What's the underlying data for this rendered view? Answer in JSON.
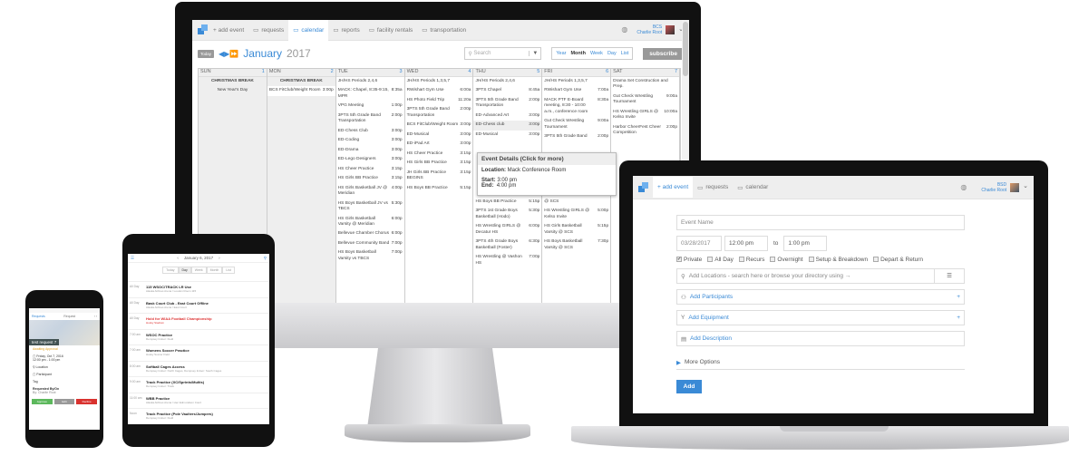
{
  "colors": {
    "accent": "#3a8ad6",
    "approve": "#5cb85c",
    "edit": "#999999",
    "decline": "#d9322f",
    "hold": "#dd3333"
  },
  "desktop": {
    "nav": {
      "items": [
        {
          "icon": "add-icon",
          "label": "+ add event"
        },
        {
          "icon": "inbox-icon",
          "label": "requests"
        },
        {
          "icon": "calendar-icon",
          "label": "calendar",
          "active": true
        },
        {
          "icon": "reports-icon",
          "label": "reports"
        },
        {
          "icon": "building-icon",
          "label": "facility rentals"
        },
        {
          "icon": "plane-icon",
          "label": "transportation"
        }
      ],
      "org": "BCS",
      "user": "Charlie Root"
    },
    "toolbar": {
      "today": "Today",
      "month": "January",
      "year": "2017",
      "search_placeholder": "Search",
      "views": [
        "Year",
        "Month",
        "Week",
        "Day",
        "List"
      ],
      "current_view": "Month",
      "subscribe": "subscribe"
    },
    "days": [
      {
        "name": "SUN",
        "num": "1",
        "allday": [
          "CHRISTMAS BREAK",
          "New Year's Day"
        ],
        "events": []
      },
      {
        "name": "MON",
        "num": "2",
        "allday": [
          "CHRISTMAS BREAK"
        ],
        "events": [
          [
            "BCS FitClub/Weight Room",
            "3:00p"
          ]
        ]
      },
      {
        "name": "TUE",
        "num": "3",
        "allday": [],
        "events": [
          [
            "JH/HS Periods 2,4,6",
            ""
          ],
          [
            "MACK: Chapel, 8:35-9:15, MPR",
            "8:35a"
          ],
          [
            "VPG Meeting",
            "1:00p"
          ],
          [
            "3PTS 5th Grade Band Transportation",
            "2:00p"
          ],
          [
            "ED-Chess Club",
            "3:00p"
          ],
          [
            "ED-Coding",
            "3:00p"
          ],
          [
            "ED-Drama",
            "3:00p"
          ],
          [
            "ED-Lego Designers",
            "3:00p"
          ],
          [
            "HS Cheer Practice",
            "3:15p"
          ],
          [
            "HS Girls BB Practice",
            "3:15p"
          ],
          [
            "HS Girls Basketball JV @ Meridian",
            "4:00p"
          ],
          [
            "HS Boys Basketball JV vs TBCS",
            "5:30p"
          ],
          [
            "HS Girls Basketball Varsity @ Meridian",
            "6:00p"
          ],
          [
            "Bellevue Chamber Chorus",
            "6:00p"
          ],
          [
            "Bellevue Community Band",
            "7:00p"
          ],
          [
            "HS Boys Basketball Varsity vs TBCS",
            "7:00p"
          ]
        ]
      },
      {
        "name": "WED",
        "num": "4",
        "allday": [],
        "events": [
          [
            "JH/HS Periods 1,3,5,7",
            ""
          ],
          [
            "RWishart Gym Use",
            "6:00a"
          ],
          [
            "HS Photo Field Trip",
            "11:20a"
          ],
          [
            "3PTS 5th Grade Band Transportation",
            "2:00p"
          ],
          [
            "BCS FitClub/Weight Room",
            "3:00p"
          ],
          [
            "ED-Musical",
            "3:00p"
          ],
          [
            "ED-iPad Art",
            "3:00p"
          ],
          [
            "HS Cheer Practice",
            "3:15p"
          ],
          [
            "HS Girls BB Practice",
            "3:15p"
          ],
          [
            "JH Girls BB Practice BEGINS",
            "3:15p"
          ],
          [
            "HS Boys BB Practice",
            "5:15p"
          ]
        ]
      },
      {
        "name": "THU",
        "num": "5",
        "allday": [],
        "events": [
          [
            "JH/HS Periods 2,4,6",
            ""
          ],
          [
            "3PTS Chapel",
            "8:45a"
          ],
          [
            "3PTS 5th Grade Band Transportation",
            "2:00p"
          ],
          [
            "ED-Advanced Art",
            "3:00p"
          ],
          [
            "ED-Chess club",
            "3:00p"
          ],
          [
            "ED-Musical",
            "3:00p"
          ],
          null,
          null,
          null,
          null,
          [
            "HS Boys BB Practice",
            "5:15p"
          ],
          [
            "3PTS 1st Grade Boys Basketball (Hodo)",
            "5:30p"
          ],
          [
            "HS Wrestling GIRLS @ Decatur HS",
            "6:00p"
          ],
          [
            "3PTS 4th Grade Boys Basketball (Foster)",
            "6:30p"
          ],
          [
            "HS Wrestling @ Vashon HS",
            "7:00p"
          ]
        ],
        "highlight": 4
      },
      {
        "name": "FRI",
        "num": "6",
        "allday": [],
        "events": [
          [
            "JH/HS Periods 1,3,5,7",
            ""
          ],
          [
            "RWishart Gym Use",
            "7:00a"
          ],
          [
            "MACK PTF E-Board meeting, 8:30 - 10:00 a.m., conference room",
            "8:30a"
          ],
          [
            "Gut Check Wrestling Tournament",
            "9:00a"
          ],
          [
            "3PTS 5th Grade Band",
            "2:00p"
          ],
          null,
          null,
          null,
          null,
          [
            "@ SCS",
            ""
          ],
          [
            "HS Wrestling GIRLS @ Kelso Invite",
            "5:00p"
          ],
          [
            "HS Girls Basketball Varsity @ SCS",
            "5:15p"
          ],
          [
            "HS Boys Basketball Varsity @ SCS",
            "7:30p"
          ]
        ]
      },
      {
        "name": "SAT",
        "num": "7",
        "allday": [],
        "events": [
          [
            "Drama Set Construction and Prep.",
            ""
          ],
          [
            "Gut Check Wrestling Tournament",
            "9:00a"
          ],
          [
            "HS Wrestling GIRLS @ Kelso Invite",
            "10:00a"
          ],
          [
            "Harbor CheerFest Cheer Competition",
            "2:00p"
          ]
        ]
      }
    ],
    "tooltip": {
      "title": "Event Details (Click for more)",
      "location_label": "Location:",
      "location": "Mack Conference Room",
      "start_label": "Start:",
      "start": "3:00 pm",
      "end_label": "End:",
      "end": "4:00 pm"
    }
  },
  "laptop": {
    "nav": {
      "items": [
        {
          "icon": "add-icon",
          "label": "+ add event",
          "active": true
        },
        {
          "icon": "inbox-icon",
          "label": "requests"
        },
        {
          "icon": "calendar-icon",
          "label": "calendar"
        }
      ],
      "org": "BSD",
      "user": "Charlie Root"
    },
    "form": {
      "event_name_placeholder": "Event Name",
      "date": "03/28/2017",
      "start": "12:00 pm",
      "to": "to",
      "end": "1:00 pm",
      "checkboxes": [
        {
          "label": "Private",
          "checked": true
        },
        {
          "label": "All Day",
          "checked": false
        },
        {
          "label": "Recurs",
          "checked": false
        },
        {
          "label": "Overnight",
          "checked": false
        },
        {
          "label": "Setup & Breakdown",
          "checked": false
        },
        {
          "label": "Depart & Return",
          "checked": false
        }
      ],
      "locations_placeholder": "Add Locations - search here or browse your directory using →",
      "participants": "Add Participants",
      "equipment": "Add Equipment",
      "description": "Add Description",
      "plus": "+",
      "more_options": "More Options",
      "add": "Add"
    }
  },
  "tablet": {
    "date": "January 6, 2017",
    "tabs": [
      "Today",
      "Day",
      "Week",
      "Month",
      "List"
    ],
    "active_tab": "Day",
    "events": [
      {
        "time": "All Day",
        "title": "115 WSOC/TRACK LR Use",
        "sub": "Alaska Airlines Arena / Loudon Room 115"
      },
      {
        "time": "All Day",
        "title": "Bask Court Club - East Court Offline",
        "sub": "Alaska Airlines Arena / East Court"
      },
      {
        "time": "All Day",
        "title": "Hold for WIAA Football Championship",
        "sub": "Husky Stadium",
        "hold": true
      },
      {
        "time": "7:00 am",
        "title": "WSOC Practice",
        "sub": "Dempsey Indoor: Field"
      },
      {
        "time": "7:00 am",
        "title": "Womens Soccer Practice",
        "sub": "Husky Soccer Field"
      },
      {
        "time": "8:00 am",
        "title": "Softball Cages Access",
        "sub": "Dempsey Indoor: North Cages, Dempsey Indoor: South Cages"
      },
      {
        "time": "9:00 am",
        "title": "Track Practice (XC/Sprints/Multis)",
        "sub": "Dempsey Indoor: Track"
      },
      {
        "time": "11:00 am",
        "title": "WBB Practice",
        "sub": "Alaska Airlines Arena / Hec Edmundson Court"
      },
      {
        "time": "Noon",
        "title": "Track Practice (Pole Vaulters/Jumpers)",
        "sub": "Dempsey Indoor: Field"
      }
    ]
  },
  "phone": {
    "back": "Requests",
    "title": "Request",
    "request_name": "test request 7",
    "status": "Awaiting Approval",
    "date": "Friday, Oct 7, 2016",
    "time": "12:00 pm - 1:00 pm",
    "location": "Location",
    "participant": "Participant",
    "tag": "Tag",
    "requested_by_label": "Requested By/On",
    "requested_by": "By: Charlie Root",
    "approve": "Approve",
    "edit": "Edit",
    "decline": "Decline"
  }
}
